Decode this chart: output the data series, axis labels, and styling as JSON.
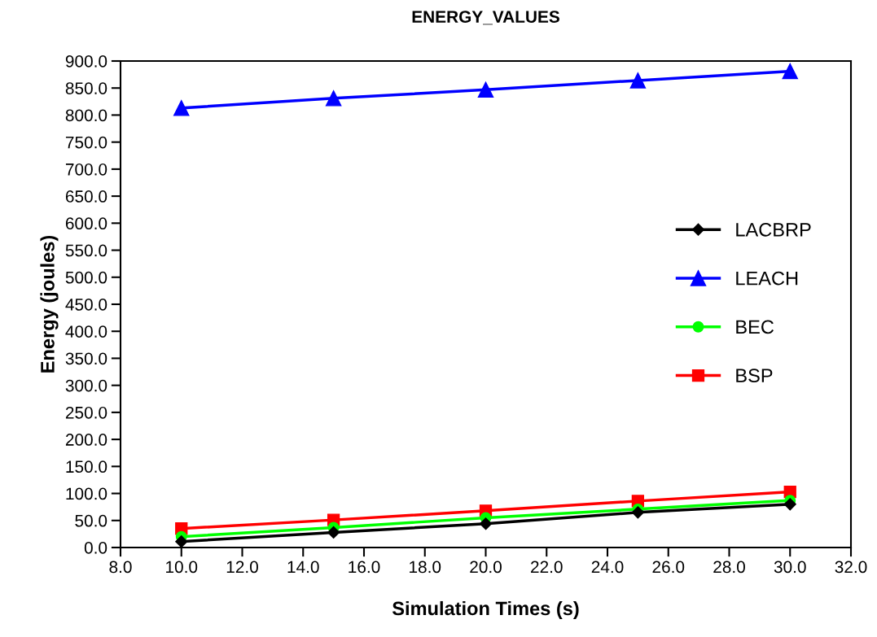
{
  "chart_data": {
    "type": "line",
    "title": "ENERGY_VALUES",
    "xlabel": "Simulation Times (s)",
    "ylabel": "Energy (joules)",
    "x": [
      10,
      15,
      20,
      25,
      30
    ],
    "series": [
      {
        "name": "LACBRP",
        "color": "#000000",
        "marker": "diamond",
        "values": [
          11,
          28,
          44,
          65,
          80
        ]
      },
      {
        "name": "LEACH",
        "color": "#0000ff",
        "marker": "triangle",
        "values": [
          813,
          831,
          847,
          864,
          881
        ]
      },
      {
        "name": "BEC",
        "color": "#00ff00",
        "marker": "circle",
        "values": [
          20,
          37,
          55,
          71,
          87
        ]
      },
      {
        "name": "BSP",
        "color": "#ff0000",
        "marker": "square",
        "values": [
          35,
          51,
          68,
          86,
          103
        ]
      }
    ],
    "xlim": [
      8,
      32
    ],
    "xticks": [
      {
        "value": 8,
        "label": "8.0"
      },
      {
        "value": 10,
        "label": "10.0"
      },
      {
        "value": 12,
        "label": "12.0"
      },
      {
        "value": 14,
        "label": "14.0"
      },
      {
        "value": 16,
        "label": "16.0"
      },
      {
        "value": 18,
        "label": "18.0"
      },
      {
        "value": 20,
        "label": "20.0"
      },
      {
        "value": 22,
        "label": "22.0"
      },
      {
        "value": 24,
        "label": "24.0"
      },
      {
        "value": 26,
        "label": "26.0"
      },
      {
        "value": 28,
        "label": "28.0"
      },
      {
        "value": 30,
        "label": "30.0"
      },
      {
        "value": 32,
        "label": "32.0"
      }
    ],
    "ylim": [
      0,
      900
    ],
    "yticks": [
      {
        "value": 0,
        "label": "0.0"
      },
      {
        "value": 50,
        "label": "50.0"
      },
      {
        "value": 100,
        "label": "100.0"
      },
      {
        "value": 150,
        "label": "150.0"
      },
      {
        "value": 200,
        "label": "200.0"
      },
      {
        "value": 250,
        "label": "250.0"
      },
      {
        "value": 300,
        "label": "300.0"
      },
      {
        "value": 350,
        "label": "350.0"
      },
      {
        "value": 400,
        "label": "400.0"
      },
      {
        "value": 450,
        "label": "450.0"
      },
      {
        "value": 500,
        "label": "500.0"
      },
      {
        "value": 550,
        "label": "550.0"
      },
      {
        "value": 600,
        "label": "600.0"
      },
      {
        "value": 650,
        "label": "650.0"
      },
      {
        "value": 700,
        "label": "700.0"
      },
      {
        "value": 750,
        "label": "750.0"
      },
      {
        "value": 800,
        "label": "800.0"
      },
      {
        "value": 850,
        "label": "850.0"
      },
      {
        "value": 900,
        "label": "900.0"
      }
    ],
    "grid": false,
    "legend": "center right",
    "line_style": "solid"
  }
}
